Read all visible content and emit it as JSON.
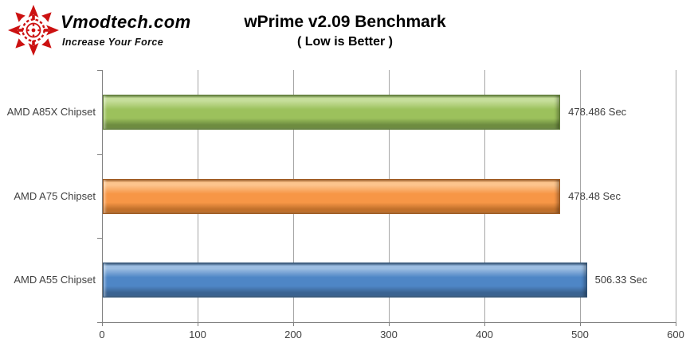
{
  "logo": {
    "brand": "Vmodtech.com",
    "tagline": "Increase Your Force",
    "color": "#cc1111"
  },
  "chart_data": {
    "type": "bar",
    "orientation": "horizontal",
    "title": "wPrime v2.09 Benchmark",
    "subtitle": "( Low is Better )",
    "categories": [
      "AMD A85X Chipset",
      "AMD A75 Chipset",
      "AMD A55 Chipset"
    ],
    "values": [
      478.486,
      478.48,
      506.33
    ],
    "value_labels": [
      "478.486 Sec",
      "478.48 Sec",
      "506.33 Sec"
    ],
    "unit": "Sec",
    "xlabel": "",
    "ylabel": "",
    "xlim": [
      0,
      600
    ],
    "xticks": [
      0,
      100,
      200,
      300,
      400,
      500,
      600
    ],
    "xtick_labels": [
      "0",
      "100",
      "200",
      "300",
      "400",
      "500",
      "600"
    ],
    "grid": true,
    "legend": null,
    "bar_colors": [
      {
        "name": "green",
        "main": "#9CC15C",
        "light": "#C6DE9B",
        "dark": "#6E8C40",
        "edge": "#5E7C36"
      },
      {
        "name": "orange",
        "main": "#F79646",
        "light": "#FCC48D",
        "dark": "#C0702B",
        "edge": "#9F5B22"
      },
      {
        "name": "blue",
        "main": "#4E86C6",
        "light": "#9DBEE2",
        "dark": "#3A6391",
        "edge": "#2E5175"
      }
    ],
    "axis_color": "#808080",
    "gridline_color": "#A6A6A6",
    "text_color": "#3F3F3F"
  }
}
